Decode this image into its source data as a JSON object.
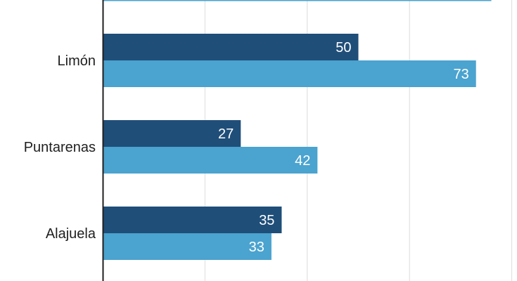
{
  "chart_data": {
    "type": "bar",
    "orientation": "horizontal",
    "categories": [
      "Limón",
      "Puntarenas",
      "Alajuela"
    ],
    "series": [
      {
        "color": "#1f4e79",
        "values": [
          50,
          27,
          35
        ]
      },
      {
        "color": "#4ba3cf",
        "values": [
          73,
          42,
          33
        ]
      }
    ],
    "partial_bar_top": {
      "color": "#4ba3cf",
      "value": 76
    },
    "xlim": [
      0,
      80
    ],
    "grid": true
  }
}
